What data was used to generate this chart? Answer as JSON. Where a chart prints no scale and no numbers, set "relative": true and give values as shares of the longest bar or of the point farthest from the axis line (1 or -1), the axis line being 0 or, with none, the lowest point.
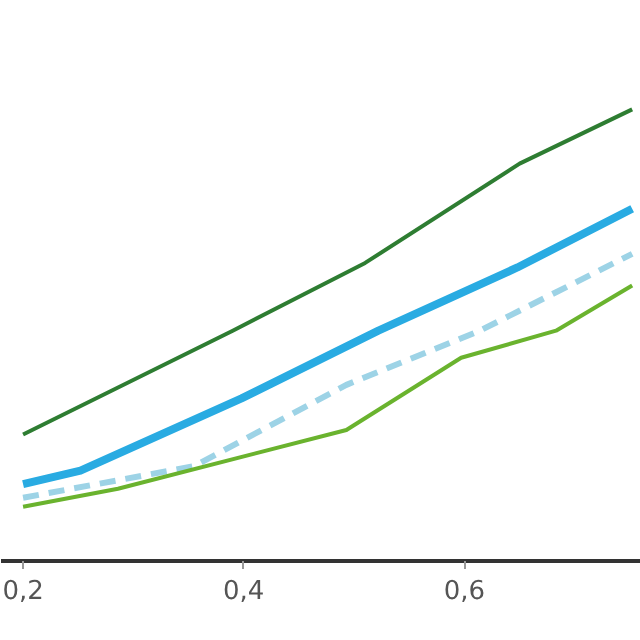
{
  "chart_data": {
    "type": "line",
    "relative": true,
    "xlim": [
      0.18,
      0.76
    ],
    "xticks": [
      {
        "value": 0.2,
        "label": "0,2"
      },
      {
        "value": 0.4,
        "label": "0,4"
      },
      {
        "value": 0.6,
        "label": "0,6"
      }
    ],
    "grid": false,
    "series": [
      {
        "color": "#2e7d32",
        "x": [
          0.2,
          0.39,
          0.51,
          0.65,
          0.752
        ],
        "values": [
          0.28,
          0.51,
          0.66,
          0.88,
          1.0
        ]
      },
      {
        "color": "#29abe2",
        "x": [
          0.2,
          0.252,
          0.398,
          0.522,
          0.648,
          0.752
        ],
        "values": [
          0.17,
          0.2,
          0.36,
          0.51,
          0.65,
          0.78
        ]
      },
      {
        "color": "#9dd3e6",
        "line_style": "dashed",
        "x": [
          0.2,
          0.355,
          0.493,
          0.614,
          0.752
        ],
        "values": [
          0.14,
          0.21,
          0.39,
          0.51,
          0.68
        ]
      },
      {
        "color": "#6ab32e",
        "x": [
          0.2,
          0.286,
          0.493,
          0.597,
          0.683,
          0.752
        ],
        "values": [
          0.12,
          0.16,
          0.29,
          0.45,
          0.51,
          0.61
        ]
      }
    ]
  }
}
